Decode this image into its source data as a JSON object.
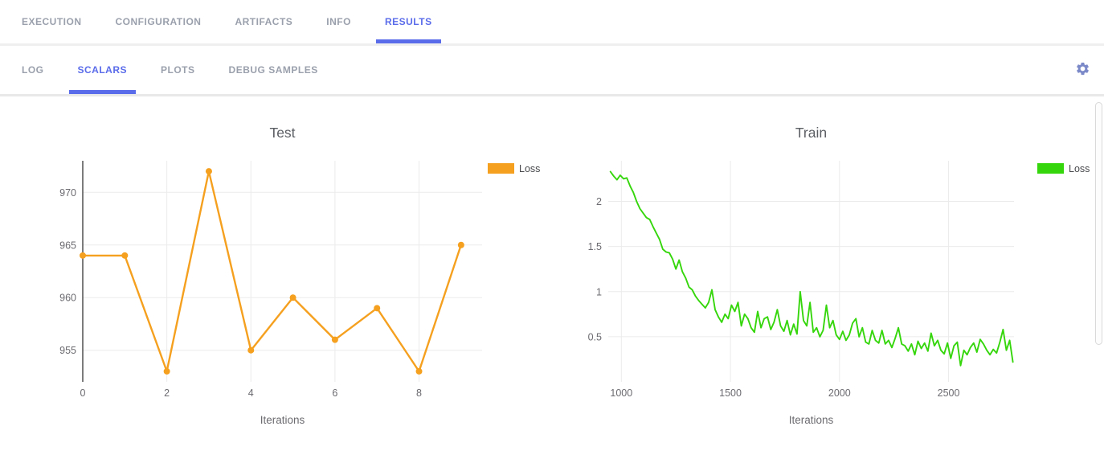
{
  "header_tabs": {
    "items": [
      {
        "label": "EXECUTION",
        "active": false
      },
      {
        "label": "CONFIGURATION",
        "active": false
      },
      {
        "label": "ARTIFACTS",
        "active": false
      },
      {
        "label": "INFO",
        "active": false
      },
      {
        "label": "RESULTS",
        "active": true
      }
    ]
  },
  "sub_tabs": {
    "items": [
      {
        "label": "LOG",
        "active": false
      },
      {
        "label": "SCALARS",
        "active": true
      },
      {
        "label": "PLOTS",
        "active": false
      },
      {
        "label": "DEBUG SAMPLES",
        "active": false
      }
    ]
  },
  "toolbar": {
    "settings_icon": "gear"
  },
  "colors": {
    "accent_blue": "#5b6cea",
    "tab_inactive_gray": "#9aa0ac",
    "gear_indigo": "#7c89c9",
    "test_loss_orange": "#f5a01e",
    "train_loss_green": "#35d60b",
    "grid_gray": "#ebebeb",
    "zeroline_dark": "#444444"
  },
  "chart_data": [
    {
      "type": "line",
      "title": "Test",
      "xlabel": "Iterations",
      "ylabel": "",
      "legend": [
        {
          "name": "Loss",
          "color": "#f5a01e"
        }
      ],
      "legend_position": "right-top",
      "color": "#f5a01e",
      "markers": true,
      "grid": true,
      "zeroline_x": 0,
      "x": [
        0,
        1,
        2,
        3,
        4,
        5,
        6,
        7,
        8,
        9
      ],
      "y": [
        964,
        964,
        953,
        972,
        955,
        960,
        956,
        959,
        953,
        965
      ],
      "xticks": [
        0,
        2,
        4,
        6,
        8
      ],
      "yticks": [
        955,
        960,
        965,
        970
      ],
      "xlim": [
        0,
        9.5
      ],
      "ylim": [
        952,
        973
      ]
    },
    {
      "type": "line",
      "title": "Train",
      "xlabel": "Iterations",
      "ylabel": "",
      "legend": [
        {
          "name": "Loss",
          "color": "#35d60b"
        }
      ],
      "legend_position": "right-top",
      "color": "#35d60b",
      "markers": false,
      "grid": true,
      "zeroline_x": null,
      "x": [
        950,
        965,
        980,
        995,
        1010,
        1025,
        1040,
        1055,
        1070,
        1085,
        1100,
        1115,
        1130,
        1145,
        1160,
        1175,
        1190,
        1205,
        1220,
        1235,
        1250,
        1265,
        1280,
        1295,
        1310,
        1325,
        1340,
        1355,
        1370,
        1385,
        1400,
        1415,
        1430,
        1445,
        1460,
        1475,
        1490,
        1505,
        1520,
        1535,
        1550,
        1565,
        1580,
        1595,
        1610,
        1625,
        1640,
        1655,
        1670,
        1685,
        1700,
        1715,
        1730,
        1745,
        1760,
        1775,
        1790,
        1805,
        1820,
        1835,
        1850,
        1865,
        1880,
        1895,
        1910,
        1925,
        1940,
        1955,
        1970,
        1985,
        2000,
        2015,
        2030,
        2045,
        2060,
        2075,
        2090,
        2105,
        2120,
        2135,
        2150,
        2165,
        2180,
        2195,
        2210,
        2225,
        2240,
        2255,
        2270,
        2285,
        2300,
        2315,
        2330,
        2345,
        2360,
        2375,
        2390,
        2405,
        2420,
        2435,
        2450,
        2465,
        2480,
        2495,
        2510,
        2525,
        2540,
        2555,
        2570,
        2585,
        2600,
        2615,
        2630,
        2645,
        2660,
        2675,
        2690,
        2705,
        2720,
        2735,
        2750,
        2765,
        2780,
        2795
      ],
      "y": [
        2.33,
        2.28,
        2.24,
        2.29,
        2.25,
        2.26,
        2.17,
        2.1,
        2.0,
        1.92,
        1.87,
        1.82,
        1.8,
        1.72,
        1.65,
        1.58,
        1.47,
        1.44,
        1.43,
        1.36,
        1.25,
        1.35,
        1.22,
        1.15,
        1.05,
        1.02,
        0.95,
        0.9,
        0.86,
        0.82,
        0.88,
        1.02,
        0.8,
        0.72,
        0.66,
        0.75,
        0.7,
        0.85,
        0.78,
        0.88,
        0.62,
        0.75,
        0.7,
        0.6,
        0.55,
        0.78,
        0.6,
        0.7,
        0.72,
        0.58,
        0.66,
        0.8,
        0.62,
        0.56,
        0.68,
        0.52,
        0.64,
        0.53,
        1.0,
        0.68,
        0.62,
        0.88,
        0.55,
        0.6,
        0.5,
        0.57,
        0.85,
        0.6,
        0.68,
        0.52,
        0.47,
        0.56,
        0.46,
        0.52,
        0.65,
        0.7,
        0.5,
        0.6,
        0.44,
        0.42,
        0.57,
        0.46,
        0.43,
        0.57,
        0.42,
        0.46,
        0.38,
        0.48,
        0.6,
        0.42,
        0.4,
        0.34,
        0.42,
        0.3,
        0.45,
        0.37,
        0.43,
        0.34,
        0.54,
        0.4,
        0.46,
        0.35,
        0.31,
        0.43,
        0.26,
        0.4,
        0.44,
        0.18,
        0.35,
        0.3,
        0.38,
        0.43,
        0.33,
        0.47,
        0.42,
        0.35,
        0.3,
        0.36,
        0.32,
        0.44,
        0.58,
        0.35,
        0.46,
        0.22
      ],
      "xticks": [
        1000,
        1500,
        2000,
        2500
      ],
      "yticks": [
        0.5,
        1,
        1.5,
        2
      ],
      "xlim": [
        940,
        2800
      ],
      "ylim": [
        0,
        2.45
      ]
    }
  ]
}
